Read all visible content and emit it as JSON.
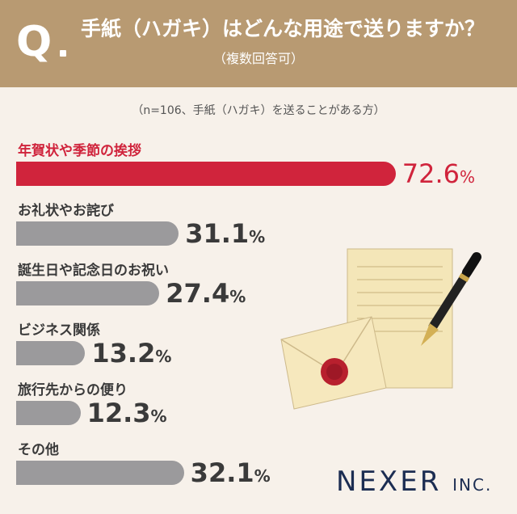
{
  "header": {
    "q_mark": "Q",
    "question": "手紙（ハガキ）はどんな用途で送りますか？",
    "note": "（複数回答可）"
  },
  "sample_note": "（n=106、手紙（ハガキ）を送ることがある方）",
  "chart_data": {
    "type": "bar",
    "orientation": "horizontal",
    "categories": [
      "年賀状や季節の挨拶",
      "お礼状やお詫び",
      "誕生日や記念日のお祝い",
      "ビジネス関係",
      "旅行先からの便り",
      "その他"
    ],
    "values": [
      72.6,
      31.1,
      27.4,
      13.2,
      12.3,
      32.1
    ],
    "value_labels": [
      "72.6",
      "31.1",
      "27.4",
      "13.2",
      "12.3",
      "32.1"
    ],
    "unit": "%",
    "highlight_index": 0,
    "colors": {
      "highlight": "#d0243c",
      "default": "#9b9a9c"
    },
    "xlim": [
      0,
      100
    ]
  },
  "logo": {
    "main": "NEXER",
    "suffix": "INC."
  }
}
